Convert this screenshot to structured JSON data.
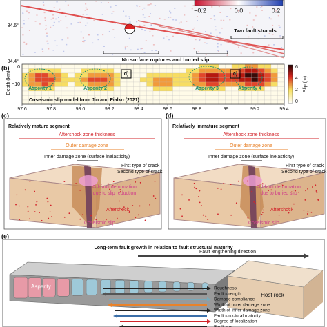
{
  "panel_a": {
    "colorbar_ticks": [
      "−0.2",
      "0.0",
      "0.2"
    ],
    "lat_ticks": [
      "34.6°",
      "34.4°"
    ],
    "annotations": [
      "Two fault strands",
      "No surface ruptures and buried slip"
    ]
  },
  "panel_b": {
    "label": "(b)",
    "y_axis_label": "Depth (km)",
    "y_ticks": [
      "0",
      "−10"
    ],
    "x_ticks": [
      "97.6",
      "97.8",
      "98.0",
      "98.2",
      "98.4",
      "98.6",
      "98.8",
      "99",
      "99.2",
      "99.4"
    ],
    "colorbar_label": "Slip (m)",
    "colorbar_ticks": [
      "6",
      "4",
      "2",
      "0"
    ],
    "asperities": [
      "Asperity 1",
      "Asperity 2",
      "Asperity 3",
      "Asperity 4"
    ],
    "boxes": [
      "d)",
      "c)"
    ],
    "caption": "Coseismic slip model from Jin and Fialko (2021)"
  },
  "panel_c": {
    "label": "(c)",
    "title": "Relatively mature segment",
    "aftershock_zone": "Aftershock zone thickness",
    "outer": "Outer damage zone",
    "inner": "Inner damage zone (surface inelasticity)",
    "crack1": "First type of crack",
    "crack2": "Second type of crack",
    "offfault": [
      "Off-fault deformation",
      "due to slip reduction"
    ],
    "aftershock": "Aftershock",
    "slip": "Coseismic slip"
  },
  "panel_d": {
    "label": "(d)",
    "title": "Relatively immature segment",
    "aftershock_zone": "Aftershock zone thickness",
    "outer": "Outer damage zone",
    "inner": "Inner damage zone (surface inelasticity)",
    "crack1": "First type of crack",
    "crack2": "Second type of crack",
    "offfault": [
      "Off-fault deformation",
      "due to buried slip"
    ],
    "aftershock": "Aftershock",
    "slip": "Coseismic slip"
  },
  "panel_e": {
    "label": "(e)",
    "title": "Long-term fault growth in relation to fault structural maturity",
    "direction": "Fault lengthening direction",
    "asperity": "Asperity",
    "host_rock": "Host rock",
    "trends": [
      "Roughness",
      "Fault strength",
      "Damage compliance",
      "Width of outer damage zone",
      "Width of inner damage zone",
      "Fault structural maturity",
      "Degree of localization",
      "Fault age"
    ]
  }
}
